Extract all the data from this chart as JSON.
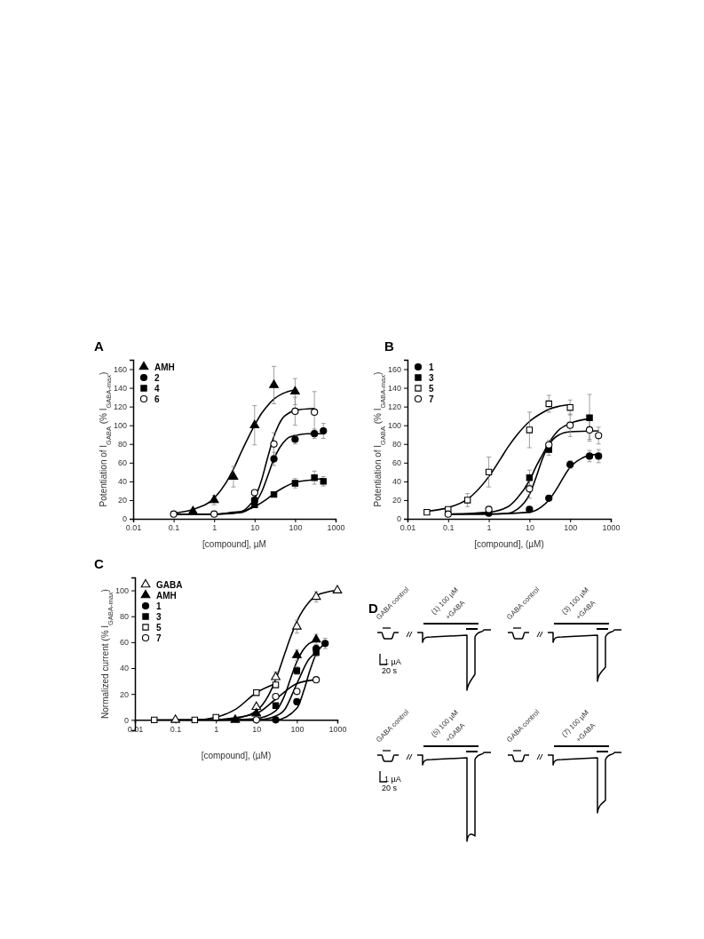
{
  "chart_data": [
    {
      "type": "scatter",
      "title": "A",
      "xlabel": "[compound], µM",
      "ylabel": "Potentiation of I$_{GABA}$ (% I$_{GABA-max}$)",
      "log": "x",
      "legend": "top left",
      "xlim": [
        0.01,
        1000
      ],
      "xticks": [
        0.01,
        0.1,
        1,
        10,
        100,
        1000
      ],
      "ylim": [
        0,
        170
      ],
      "yticks": [
        0,
        20,
        40,
        60,
        80,
        100,
        120,
        140,
        160
      ],
      "series": [
        {
          "type": "line",
          "color": "#000000",
          "marker": "none",
          "x": [
            0.1,
            0.3,
            1,
            2,
            3,
            5,
            7,
            10,
            15,
            20,
            30,
            50,
            100
          ],
          "values": [
            6,
            10,
            22,
            39,
            53,
            74,
            87,
            100,
            113,
            120,
            128,
            134,
            138
          ]
        },
        {
          "type": "line",
          "color": "#000000",
          "marker": "none",
          "x": [
            0.1,
            1,
            3,
            5,
            7,
            10,
            15,
            20,
            30,
            50,
            70,
            100,
            200,
            300,
            500
          ],
          "values": [
            5,
            5,
            6,
            7,
            10,
            16,
            29,
            43,
            64,
            81,
            87,
            89,
            91,
            91,
            91
          ]
        },
        {
          "type": "line",
          "color": "#000000",
          "marker": "none",
          "x": [
            0.1,
            1,
            3,
            5,
            10,
            20,
            30,
            50,
            100,
            200,
            500
          ],
          "values": [
            5,
            5,
            7,
            8,
            13,
            21,
            27,
            33,
            39,
            41,
            43
          ]
        },
        {
          "type": "line",
          "color": "#000000",
          "marker": "none",
          "x": [
            0.1,
            1,
            3,
            5,
            7,
            10,
            15,
            20,
            30,
            50,
            70,
            100,
            300
          ],
          "values": [
            5,
            5,
            6,
            8,
            13,
            22,
            42,
            62,
            88,
            108,
            113,
            116,
            118
          ]
        },
        {
          "name": "AMH",
          "type": "scatter",
          "marker": "triangle",
          "color": "#000000",
          "x": [
            0.3,
            1,
            3,
            10,
            30,
            100
          ],
          "values": [
            8,
            20,
            45,
            100,
            143,
            136
          ],
          "errors": [
            null,
            5,
            11,
            21,
            20,
            14
          ]
        },
        {
          "name": "2",
          "type": "scatter",
          "marker": "circle",
          "color": "#000000",
          "x": [
            10,
            30,
            100,
            300,
            500
          ],
          "values": [
            20,
            64,
            85,
            91,
            94
          ],
          "errors": [
            null,
            7,
            5,
            5,
            8
          ]
        },
        {
          "name": "4",
          "type": "scatter",
          "marker": "square",
          "color": "#000000",
          "x": [
            10,
            30,
            100,
            300,
            500
          ],
          "values": [
            15,
            26,
            38,
            44,
            40
          ],
          "errors": [
            null,
            null,
            5,
            7,
            5
          ]
        },
        {
          "name": "6",
          "type": "scatter",
          "marker": "circle",
          "color": "#ffffff",
          "x": [
            0.1,
            1,
            10,
            30,
            100,
            300
          ],
          "values": [
            5,
            5,
            28,
            80,
            115,
            114
          ],
          "errors": [
            null,
            null,
            null,
            12,
            15,
            22
          ]
        }
      ]
    },
    {
      "type": "scatter",
      "title": "B",
      "xlabel": "[compound], (µM)",
      "ylabel": "Potentiation of I$_{GABA}$ (% I$_{GABA-max}$)",
      "log": "x",
      "legend": "top left",
      "xlim": [
        0.01,
        1000
      ],
      "xticks": [
        0.01,
        0.1,
        1,
        10,
        100,
        1000
      ],
      "ylim": [
        0,
        170
      ],
      "yticks": [
        0,
        20,
        40,
        60,
        80,
        100,
        120,
        140,
        160
      ],
      "series": [
        {
          "type": "line",
          "color": "#000000",
          "marker": "none",
          "x": [
            0.1,
            1,
            10,
            20,
            30,
            50,
            70,
            100,
            200,
            300,
            500
          ],
          "values": [
            5,
            5,
            7,
            13,
            20,
            34,
            45,
            55,
            65,
            68,
            69
          ]
        },
        {
          "type": "line",
          "color": "#000000",
          "marker": "none",
          "x": [
            0.1,
            1,
            3,
            5,
            10,
            15,
            20,
            30,
            50,
            100,
            300
          ],
          "values": [
            5,
            7,
            13,
            22,
            41,
            57,
            67,
            81,
            94,
            102,
            107
          ]
        },
        {
          "type": "line",
          "color": "#000000",
          "marker": "none",
          "x": [
            0.03,
            0.1,
            0.3,
            1,
            2,
            3,
            5,
            10,
            20,
            30,
            50,
            100
          ],
          "values": [
            8,
            12,
            21,
            45,
            65,
            77,
            90,
            104,
            113,
            117,
            120,
            122
          ]
        },
        {
          "type": "line",
          "color": "#000000",
          "marker": "none",
          "x": [
            0.1,
            1,
            3,
            5,
            10,
            15,
            20,
            30,
            50,
            100,
            500
          ],
          "values": [
            5,
            5,
            6,
            10,
            26,
            46,
            62,
            79,
            89,
            93,
            94
          ]
        },
        {
          "name": "1",
          "type": "scatter",
          "marker": "circle",
          "color": "#000000",
          "x": [
            1,
            10,
            30,
            100,
            300,
            500
          ],
          "values": [
            6,
            10,
            22,
            58,
            67,
            67
          ],
          "errors": [
            null,
            null,
            null,
            4,
            6,
            7
          ]
        },
        {
          "name": "3",
          "type": "scatter",
          "marker": "square",
          "color": "#000000",
          "x": [
            10,
            30,
            300
          ],
          "values": [
            44,
            74,
            108
          ],
          "errors": [
            8,
            6,
            25
          ]
        },
        {
          "name": "5",
          "type": "scatter",
          "marker": "square",
          "color": "#ffffff",
          "x": [
            0.03,
            0.1,
            0.3,
            1,
            10,
            30,
            100
          ],
          "values": [
            7,
            10,
            20,
            50,
            95,
            123,
            119
          ],
          "errors": [
            null,
            null,
            7,
            16,
            19,
            9,
            8
          ]
        },
        {
          "name": "7",
          "type": "scatter",
          "marker": "circle",
          "color": "#ffffff",
          "x": [
            0.1,
            1,
            10,
            30,
            100,
            300,
            500
          ],
          "values": [
            5,
            10,
            32,
            79,
            100,
            95,
            89
          ],
          "errors": [
            null,
            null,
            10,
            5,
            12,
            10,
            9
          ]
        }
      ]
    },
    {
      "type": "scatter",
      "title": "C",
      "xlabel": "[compound], (µM)",
      "ylabel": "Normalized current (% I$_{GABA-max}$)",
      "log": "x",
      "legend": "top left",
      "xlim": [
        0.01,
        1000
      ],
      "xticks": [
        0.01,
        0.1,
        1,
        10,
        100,
        1000
      ],
      "ylim": [
        -8,
        110
      ],
      "yticks": [
        0,
        20,
        40,
        60,
        80,
        100
      ],
      "series": [
        {
          "type": "line",
          "color": "#000000",
          "marker": "none",
          "x": [
            0.1,
            1,
            3,
            10,
            20,
            30,
            50,
            70,
            100,
            200,
            300,
            1000
          ],
          "values": [
            0,
            0,
            1,
            7,
            19,
            31,
            51,
            64,
            76,
            91,
            96,
            100
          ]
        },
        {
          "type": "line",
          "color": "#000000",
          "marker": "none",
          "x": [
            3,
            10,
            30,
            50,
            70,
            100,
            200,
            300
          ],
          "values": [
            0,
            1,
            7,
            19,
            32,
            45,
            59,
            61
          ]
        },
        {
          "type": "line",
          "color": "#000000",
          "marker": "none",
          "x": [
            1,
            30,
            100,
            150,
            200,
            300,
            500
          ],
          "values": [
            0,
            0,
            9,
            23,
            36,
            51,
            59
          ]
        },
        {
          "type": "line",
          "color": "#000000",
          "marker": "none",
          "x": [
            0.3,
            10,
            30,
            50,
            100,
            200,
            300
          ],
          "values": [
            0,
            0,
            3,
            8,
            28,
            47,
            52
          ]
        },
        {
          "type": "line",
          "color": "#000000",
          "marker": "none",
          "x": [
            0.03,
            0.3,
            1,
            3,
            10,
            30
          ],
          "values": [
            0,
            0,
            2,
            8,
            21,
            28
          ]
        },
        {
          "type": "line",
          "color": "#000000",
          "marker": "none",
          "x": [
            1,
            10,
            30,
            100,
            300
          ],
          "values": [
            0,
            5,
            16,
            28,
            31
          ]
        },
        {
          "name": "GABA",
          "type": "scatter",
          "marker": "triangle",
          "color": "#ffffff",
          "x": [
            0.1,
            10,
            30,
            100,
            300,
            1000
          ],
          "values": [
            0,
            10,
            33,
            72,
            95,
            100
          ],
          "errors": [
            null,
            null,
            4,
            5,
            4,
            null
          ]
        },
        {
          "name": "AMH",
          "type": "scatter",
          "marker": "triangle",
          "color": "#000000",
          "x": [
            3,
            10,
            100,
            300
          ],
          "values": [
            0,
            5,
            50,
            62
          ],
          "errors": [
            null,
            null,
            4,
            4
          ]
        },
        {
          "name": "1",
          "type": "scatter",
          "marker": "circle",
          "color": "#000000",
          "x": [
            30,
            100,
            300,
            500
          ],
          "values": [
            0,
            14,
            55,
            59
          ],
          "errors": [
            null,
            null,
            3,
            4
          ]
        },
        {
          "name": "3",
          "type": "scatter",
          "marker": "square",
          "color": "#000000",
          "x": [
            30,
            100,
            300
          ],
          "values": [
            11,
            38,
            52
          ],
          "errors": [
            null,
            3,
            3
          ]
        },
        {
          "name": "5",
          "type": "scatter",
          "marker": "square",
          "color": "#ffffff",
          "x": [
            0.03,
            0.3,
            1,
            10,
            30
          ],
          "values": [
            0,
            0,
            2,
            21,
            27
          ],
          "errors": [
            null,
            null,
            null,
            null,
            null
          ]
        },
        {
          "name": "7",
          "type": "scatter",
          "marker": "circle",
          "color": "#ffffff",
          "x": [
            10,
            30,
            100,
            300
          ],
          "values": [
            0,
            18,
            22,
            31
          ],
          "errors": [
            null,
            null,
            null,
            null
          ]
        }
      ]
    },
    {
      "type": "other",
      "title": "D",
      "annotations": [
        "GABA control",
        "(1) 100 µM",
        "+GABA",
        "GABA control",
        "(3) 100 µM",
        "+GABA",
        "GABA control",
        "(5) 100 µM",
        "+GABA",
        "GABA control",
        "(7) 100 µM",
        "+GABA",
        "1 µA",
        "20 s",
        "1 µA",
        "20 s"
      ]
    }
  ]
}
